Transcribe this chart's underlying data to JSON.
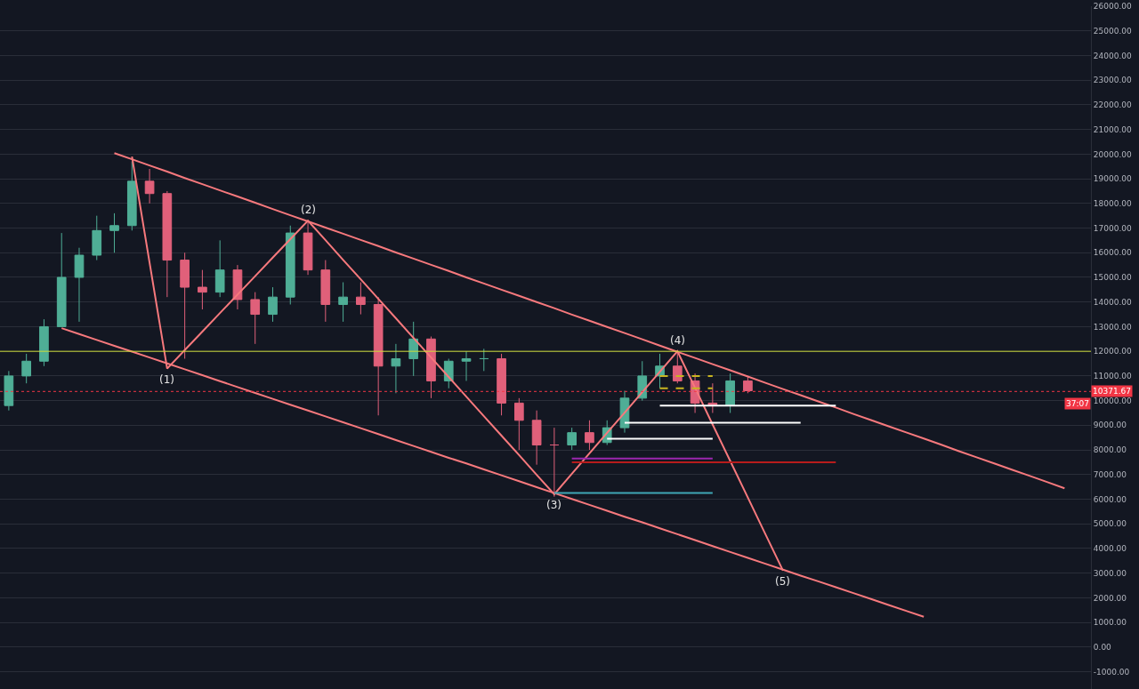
{
  "chart_data": {
    "type": "candlestick",
    "categories": [
      null,
      null,
      null,
      null,
      null,
      null,
      null,
      null,
      null,
      null,
      null,
      null,
      null,
      null,
      null,
      null,
      null,
      null,
      null,
      null,
      null,
      null,
      null,
      null,
      null,
      null,
      null,
      null,
      null,
      null,
      null,
      null,
      null,
      null,
      null,
      null,
      null,
      null,
      null,
      null,
      null,
      null,
      null,
      null,
      null,
      null,
      null,
      null,
      null,
      null,
      null,
      null,
      null,
      null,
      null,
      null,
      null,
      null,
      null,
      null,
      null,
      null
    ],
    "ohlc": [
      [
        9800,
        11200,
        9600,
        11000
      ],
      [
        11000,
        11900,
        10700,
        11600
      ],
      [
        11600,
        13300,
        11400,
        13000
      ],
      [
        13000,
        16800,
        13000,
        15000
      ],
      [
        15000,
        16200,
        13200,
        15900
      ],
      [
        15900,
        17500,
        15700,
        16900
      ],
      [
        16900,
        17600,
        16000,
        17100
      ],
      [
        17100,
        19700,
        16900,
        18900
      ],
      [
        18900,
        19400,
        18000,
        18400
      ],
      [
        18400,
        18500,
        14200,
        15700
      ],
      [
        15700,
        16000,
        11700,
        14600
      ],
      [
        14600,
        15300,
        13700,
        14400
      ],
      [
        14400,
        16500,
        14200,
        15300
      ],
      [
        15300,
        15500,
        13700,
        14100
      ],
      [
        14100,
        14400,
        12300,
        13500
      ],
      [
        13500,
        14600,
        13200,
        14200
      ],
      [
        14200,
        17100,
        13900,
        16800
      ],
      [
        16800,
        17300,
        15100,
        15300
      ],
      [
        15300,
        15700,
        13200,
        13900
      ],
      [
        13900,
        14800,
        13200,
        14200
      ],
      [
        14200,
        14800,
        13500,
        13900
      ],
      [
        13900,
        14200,
        9400,
        11400
      ],
      [
        11400,
        12300,
        10300,
        11700
      ],
      [
        11700,
        13200,
        11000,
        12500
      ],
      [
        12500,
        12600,
        10100,
        10800
      ],
      [
        10800,
        11700,
        10500,
        11600
      ],
      [
        11600,
        12000,
        10800,
        11700
      ],
      [
        11700,
        12100,
        11200,
        11700
      ],
      [
        11700,
        11900,
        9400,
        9900
      ],
      [
        9900,
        10100,
        8000,
        9200
      ],
      [
        9200,
        9600,
        7400,
        8200
      ],
      [
        8200,
        8900,
        6100,
        8200
      ],
      [
        8200,
        8900,
        8000,
        8700
      ],
      [
        8700,
        9200,
        8000,
        8300
      ],
      [
        8300,
        9200,
        8200,
        8900
      ],
      [
        8900,
        10400,
        8700,
        10100
      ],
      [
        10100,
        11600,
        10000,
        11000
      ],
      [
        11000,
        11900,
        10500,
        11400
      ],
      [
        11400,
        12000,
        10700,
        10800
      ],
      [
        10800,
        11100,
        9500,
        9900
      ],
      [
        9900,
        10700,
        9500,
        9800
      ],
      [
        9800,
        11100,
        9500,
        10800
      ],
      [
        10800,
        11000,
        10300,
        10400
      ],
      null,
      null,
      null,
      null,
      null,
      null,
      null,
      null,
      null,
      null,
      null,
      null,
      null,
      null,
      null,
      null,
      null,
      null,
      null
    ],
    "series": [
      {
        "type": "line",
        "color": "#f7797d",
        "values": [
          null,
          null,
          null,
          null,
          null,
          null,
          20040,
          19790,
          19540,
          19290,
          19030,
          18780,
          18530,
          18280,
          18030,
          17770,
          17520,
          17270,
          17020,
          16770,
          16520,
          16270,
          16010,
          15760,
          15510,
          15260,
          15000,
          14750,
          14500,
          14250,
          14000,
          13750,
          13490,
          13240,
          12990,
          12740,
          12490,
          12230,
          11980,
          11730,
          11480,
          11230,
          10980,
          10720,
          10470,
          10220,
          9970,
          9720,
          9460,
          9210,
          8960,
          8710,
          8460,
          8210,
          7950,
          7700,
          7450,
          7200,
          6950,
          6700,
          6440,
          null
        ]
      },
      {
        "type": "line",
        "color": "#f7797d",
        "values": [
          null,
          null,
          null,
          12940,
          12700,
          12460,
          12220,
          11990,
          11750,
          11510,
          11270,
          11030,
          10790,
          10550,
          10310,
          10070,
          9830,
          9600,
          9360,
          9120,
          8880,
          8640,
          8400,
          8160,
          7920,
          7680,
          7450,
          7210,
          6970,
          6730,
          6490,
          6250,
          6010,
          5770,
          5530,
          5290,
          5060,
          4820,
          4580,
          4340,
          4100,
          3860,
          3620,
          3380,
          3140,
          2900,
          2670,
          2430,
          2190,
          1950,
          1710,
          1470,
          1230,
          null,
          null,
          null,
          null,
          null,
          null,
          null,
          null,
          null
        ]
      },
      {
        "type": "line",
        "color": "#f7797d",
        "values": [
          null,
          null,
          null,
          null,
          null,
          null,
          null,
          19900,
          15600,
          11300,
          12050,
          12800,
          13550,
          14300,
          15050,
          15800,
          16550,
          17300,
          16510,
          15710,
          14920,
          14130,
          13340,
          12540,
          11750,
          10960,
          10160,
          9370,
          8580,
          7790,
          6990,
          6200,
          7030,
          7860,
          8690,
          9510,
          10340,
          11170,
          12000,
          10520,
          9030,
          7550,
          6070,
          4580,
          3100,
          null,
          null,
          null,
          null,
          null,
          null,
          null,
          null,
          null,
          null,
          null,
          null,
          null,
          null,
          null,
          null,
          null
        ]
      },
      {
        "type": "line",
        "color": "#ffffff",
        "values": [
          null,
          null,
          null,
          null,
          null,
          null,
          null,
          null,
          null,
          null,
          null,
          null,
          null,
          null,
          null,
          null,
          null,
          null,
          null,
          null,
          null,
          null,
          null,
          null,
          null,
          null,
          null,
          null,
          null,
          null,
          null,
          null,
          null,
          null,
          null,
          null,
          null,
          9800,
          9800,
          9800,
          9800,
          9800,
          9800,
          9800,
          9800,
          9800,
          9800,
          9800,
          null,
          null,
          null,
          null,
          null,
          null,
          null,
          null,
          null,
          null,
          null,
          null,
          null,
          null
        ]
      },
      {
        "type": "line",
        "color": "#ffffff",
        "values": [
          null,
          null,
          null,
          null,
          null,
          null,
          null,
          null,
          null,
          null,
          null,
          null,
          null,
          null,
          null,
          null,
          null,
          null,
          null,
          null,
          null,
          null,
          null,
          null,
          null,
          null,
          null,
          null,
          null,
          null,
          null,
          null,
          null,
          null,
          null,
          9100,
          9100,
          9100,
          9100,
          9100,
          9100,
          9100,
          9100,
          9100,
          9100,
          9100,
          null,
          null,
          null,
          null,
          null,
          null,
          null,
          null,
          null,
          null,
          null,
          null,
          null,
          null,
          null,
          null
        ]
      },
      {
        "type": "line",
        "color": "#ffffff",
        "values": [
          null,
          null,
          null,
          null,
          null,
          null,
          null,
          null,
          null,
          null,
          null,
          null,
          null,
          null,
          null,
          null,
          null,
          null,
          null,
          null,
          null,
          null,
          null,
          null,
          null,
          null,
          null,
          null,
          null,
          null,
          null,
          null,
          null,
          null,
          8450,
          8450,
          8450,
          8450,
          8450,
          8450,
          8450,
          null,
          null,
          null,
          null,
          null,
          null,
          null,
          null,
          null,
          null,
          null,
          null,
          null,
          null,
          null,
          null,
          null,
          null,
          null,
          null,
          null
        ]
      },
      {
        "type": "line",
        "color": "#9c27b0",
        "values": [
          null,
          null,
          null,
          null,
          null,
          null,
          null,
          null,
          null,
          null,
          null,
          null,
          null,
          null,
          null,
          null,
          null,
          null,
          null,
          null,
          null,
          null,
          null,
          null,
          null,
          null,
          null,
          null,
          null,
          null,
          null,
          null,
          7650,
          7650,
          7650,
          7650,
          7650,
          7650,
          7650,
          7650,
          7650,
          null,
          null,
          null,
          null,
          null,
          null,
          null,
          null,
          null,
          null,
          null,
          null,
          null,
          null,
          null,
          null,
          null,
          null,
          null,
          null,
          null
        ]
      },
      {
        "type": "line",
        "color": "#b71c1c",
        "values": [
          null,
          null,
          null,
          null,
          null,
          null,
          null,
          null,
          null,
          null,
          null,
          null,
          null,
          null,
          null,
          null,
          null,
          null,
          null,
          null,
          null,
          null,
          null,
          null,
          null,
          null,
          null,
          null,
          null,
          null,
          null,
          null,
          7500,
          7500,
          7500,
          7500,
          7500,
          7500,
          7500,
          7500,
          7500,
          7500,
          7500,
          7500,
          7500,
          7500,
          7500,
          7500,
          null,
          null,
          null,
          null,
          null,
          null,
          null,
          null,
          null,
          null,
          null,
          null,
          null,
          null
        ]
      },
      {
        "type": "line",
        "color": "#3fa7b5",
        "values": [
          null,
          null,
          null,
          null,
          null,
          null,
          null,
          null,
          null,
          null,
          null,
          null,
          null,
          null,
          null,
          null,
          null,
          null,
          null,
          null,
          null,
          null,
          null,
          null,
          null,
          null,
          null,
          null,
          null,
          null,
          null,
          6250,
          6250,
          6250,
          6250,
          6250,
          6250,
          6250,
          6250,
          6250,
          6250,
          null,
          null,
          null,
          null,
          null,
          null,
          null,
          null,
          null,
          null,
          null,
          null,
          null,
          null,
          null,
          null,
          null,
          null,
          null,
          null,
          null
        ]
      },
      {
        "type": "line",
        "color": "#c9b521",
        "line_style": "dashed",
        "values": [
          null,
          null,
          null,
          null,
          null,
          null,
          null,
          null,
          null,
          null,
          null,
          null,
          null,
          null,
          null,
          null,
          null,
          null,
          null,
          null,
          null,
          null,
          null,
          null,
          null,
          null,
          null,
          null,
          null,
          null,
          null,
          null,
          null,
          null,
          null,
          null,
          null,
          11000,
          11000,
          11000,
          11000,
          null,
          null,
          null,
          null,
          null,
          null,
          null,
          null,
          null,
          null,
          null,
          null,
          null,
          null,
          null,
          null,
          null,
          null,
          null,
          null,
          null
        ]
      },
      {
        "type": "line",
        "color": "#c9b521",
        "line_style": "dashed",
        "values": [
          null,
          null,
          null,
          null,
          null,
          null,
          null,
          null,
          null,
          null,
          null,
          null,
          null,
          null,
          null,
          null,
          null,
          null,
          null,
          null,
          null,
          null,
          null,
          null,
          null,
          null,
          null,
          null,
          null,
          null,
          null,
          null,
          null,
          null,
          null,
          null,
          null,
          10500,
          10500,
          10500,
          10500,
          null,
          null,
          null,
          null,
          null,
          null,
          null,
          null,
          null,
          null,
          null,
          null,
          null,
          null,
          null,
          null,
          null,
          null,
          null,
          null,
          null
        ]
      }
    ],
    "ref_lines": [
      {
        "axis": "y",
        "value": 12000,
        "color": "#cddc39"
      },
      {
        "axis": "y",
        "value": 10371.67,
        "label": "10371.67",
        "color": "#f23645",
        "line_style": "dotted"
      }
    ],
    "annotations": [
      "37:07",
      {
        "text": "(1)",
        "y": 11300
      },
      {
        "text": "(2)",
        "y": 17300
      },
      {
        "text": "(3)",
        "y": 6200
      },
      {
        "text": "(4)",
        "y": 12000
      },
      {
        "text": "(5)",
        "y": 3100
      }
    ],
    "ylim": [
      -1700,
      26000
    ],
    "yticks": [
      {
        "value": -1000,
        "label": "-1000.00"
      },
      {
        "value": 0,
        "label": "0.00"
      },
      {
        "value": 1000,
        "label": "1000.00"
      },
      {
        "value": 2000,
        "label": "2000.00"
      },
      {
        "value": 3000,
        "label": "3000.00"
      },
      {
        "value": 4000,
        "label": "4000.00"
      },
      {
        "value": 5000,
        "label": "5000.00"
      },
      {
        "value": 6000,
        "label": "6000.00"
      },
      {
        "value": 7000,
        "label": "7000.00"
      },
      {
        "value": 8000,
        "label": "8000.00"
      },
      {
        "value": 9000,
        "label": "9000.00"
      },
      {
        "value": 10000,
        "label": "10000.00"
      },
      {
        "value": 11000,
        "label": "11000.00"
      },
      {
        "value": 12000,
        "label": "12000.00"
      },
      {
        "value": 13000,
        "label": "13000.00"
      },
      {
        "value": 14000,
        "label": "14000.00"
      },
      {
        "value": 15000,
        "label": "15000.00"
      },
      {
        "value": 16000,
        "label": "16000.00"
      },
      {
        "value": 17000,
        "label": "17000.00"
      },
      {
        "value": 18000,
        "label": "18000.00"
      },
      {
        "value": 19000,
        "label": "19000.00"
      },
      {
        "value": 20000,
        "label": "20000.00"
      },
      {
        "value": 21000,
        "label": "21000.00"
      },
      {
        "value": 22000,
        "label": "22000.00"
      },
      {
        "value": 23000,
        "label": "23000.00"
      },
      {
        "value": 24000,
        "label": "24000.00"
      },
      {
        "value": 25000,
        "label": "25000.00"
      },
      {
        "value": 26000,
        "label": "26000.00"
      }
    ],
    "grid": "y",
    "tick_labels": "y"
  }
}
